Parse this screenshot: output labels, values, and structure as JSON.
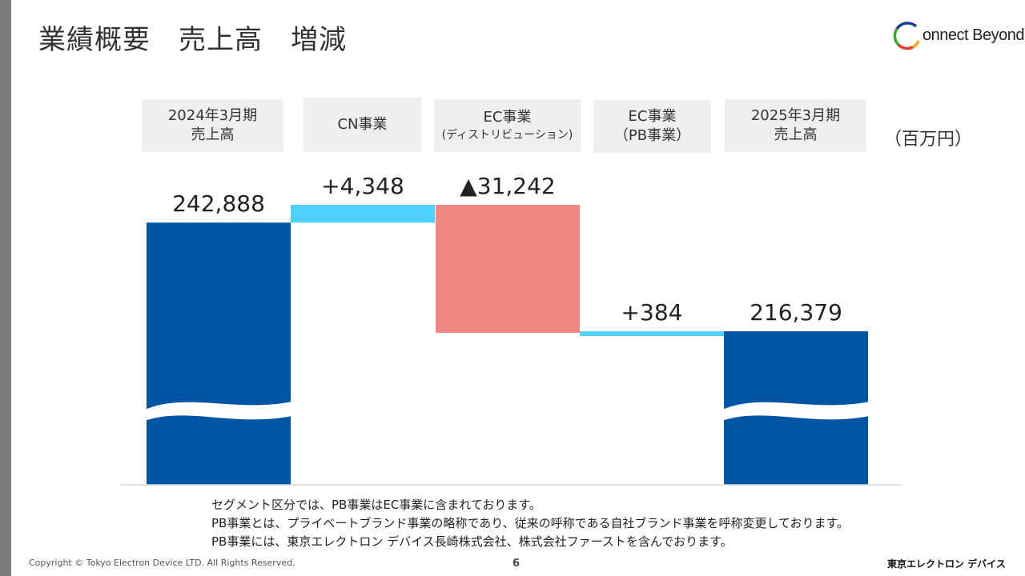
{
  "page": {
    "title": "業績概要　売上高　増減",
    "unit": "（百万円）",
    "page_number": "6",
    "copyright": "Copyright © Tokyo Electron Device LTD. All Rights Reserved.",
    "footer_brand": "東京エレクトロン デバイス"
  },
  "logo": {
    "text": "onnect Beyond",
    "colors": [
      "#1a3f8f",
      "#3aaa35",
      "#e8392c",
      "#f5a623"
    ]
  },
  "categories": [
    {
      "line1": "2024年3月期",
      "line2": "売上高",
      "small": false
    },
    {
      "line1": "CN事業",
      "line2": "",
      "small": false
    },
    {
      "line1": "EC事業",
      "line2": "(ディストリビューション)",
      "small": true
    },
    {
      "line1": "EC事業",
      "line2": "（PB事業）",
      "small": false
    },
    {
      "line1": "2025年3月期",
      "line2": "売上高",
      "small": false
    }
  ],
  "chart_data": {
    "type": "bar",
    "subtype": "waterfall",
    "categories": [
      "2024年3月期 売上高",
      "CN事業",
      "EC事業 (ディストリビューション)",
      "EC事業 (PB事業)",
      "2025年3月期 売上高"
    ],
    "values": [
      242888,
      4348,
      -31242,
      384,
      216379
    ],
    "kinds": [
      "total",
      "increase",
      "decrease",
      "increase",
      "total"
    ],
    "labels": [
      "242,888",
      "+4,348",
      "▲31,242",
      "+384",
      "216,379"
    ],
    "axis_break": true,
    "colors": {
      "total": "#0055a5",
      "increase": "#4fd0ff",
      "decrease": "#ef8783"
    },
    "title": "",
    "xlabel": "",
    "ylabel": ""
  },
  "notes": [
    "セグメント区分では、PB事業はEC事業に含まれております。",
    "PB事業とは、プライベートブランド事業の略称であり、従来の呼称である自社ブランド事業を呼称変更しております。",
    "PB事業には、東京エレクトロン デバイス長崎株式会社、株式会社ファーストを含んでおります。"
  ]
}
